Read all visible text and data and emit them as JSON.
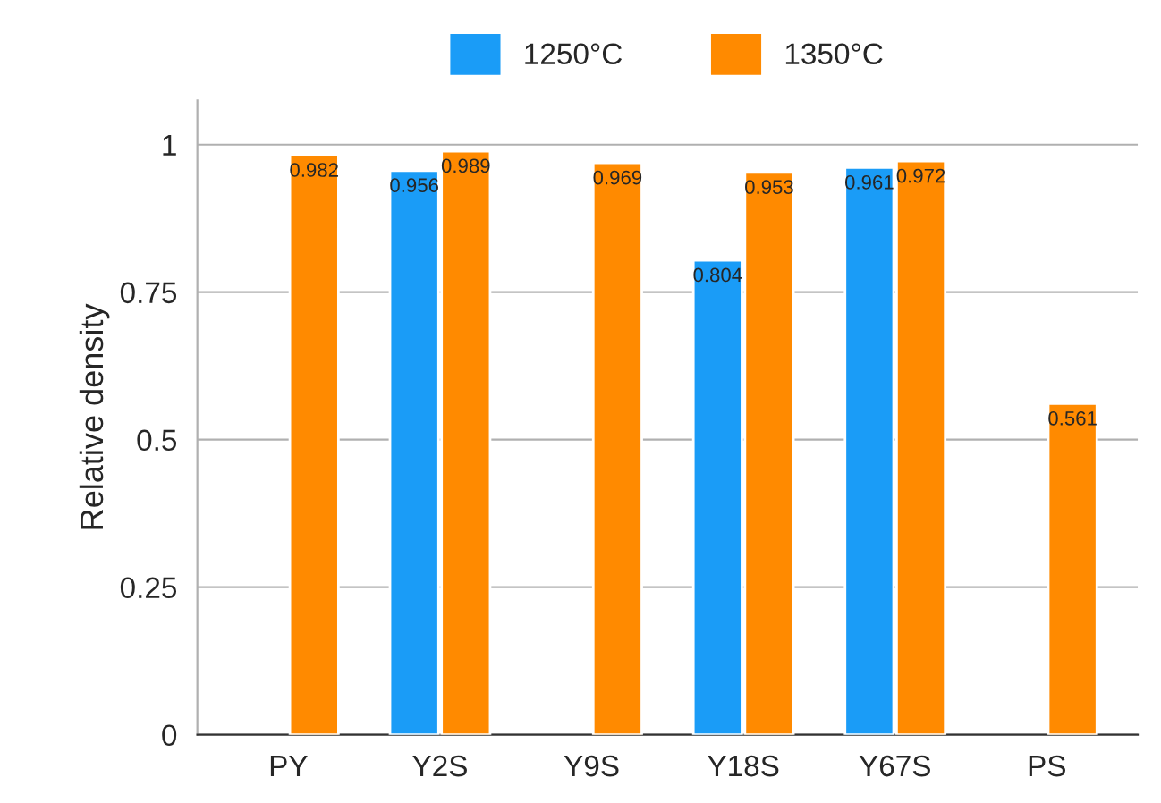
{
  "chart_data": {
    "type": "bar",
    "ylabel": "Relative density",
    "categories": [
      "PY",
      "Y2S",
      "Y9S",
      "Y18S",
      "Y67S",
      "PS"
    ],
    "series": [
      {
        "name": "1250°C",
        "color": "#1a9cf7",
        "values": [
          null,
          0.956,
          null,
          0.804,
          0.961,
          null
        ]
      },
      {
        "name": "1350°C",
        "color": "#ff8a00",
        "values": [
          0.982,
          0.989,
          0.969,
          0.953,
          0.972,
          0.561
        ]
      }
    ],
    "ylim": [
      0,
      1.075
    ],
    "yticks": [
      0,
      0.25,
      0.5,
      0.75,
      1
    ],
    "grid": "y",
    "legend": "top",
    "data_labels": true
  }
}
